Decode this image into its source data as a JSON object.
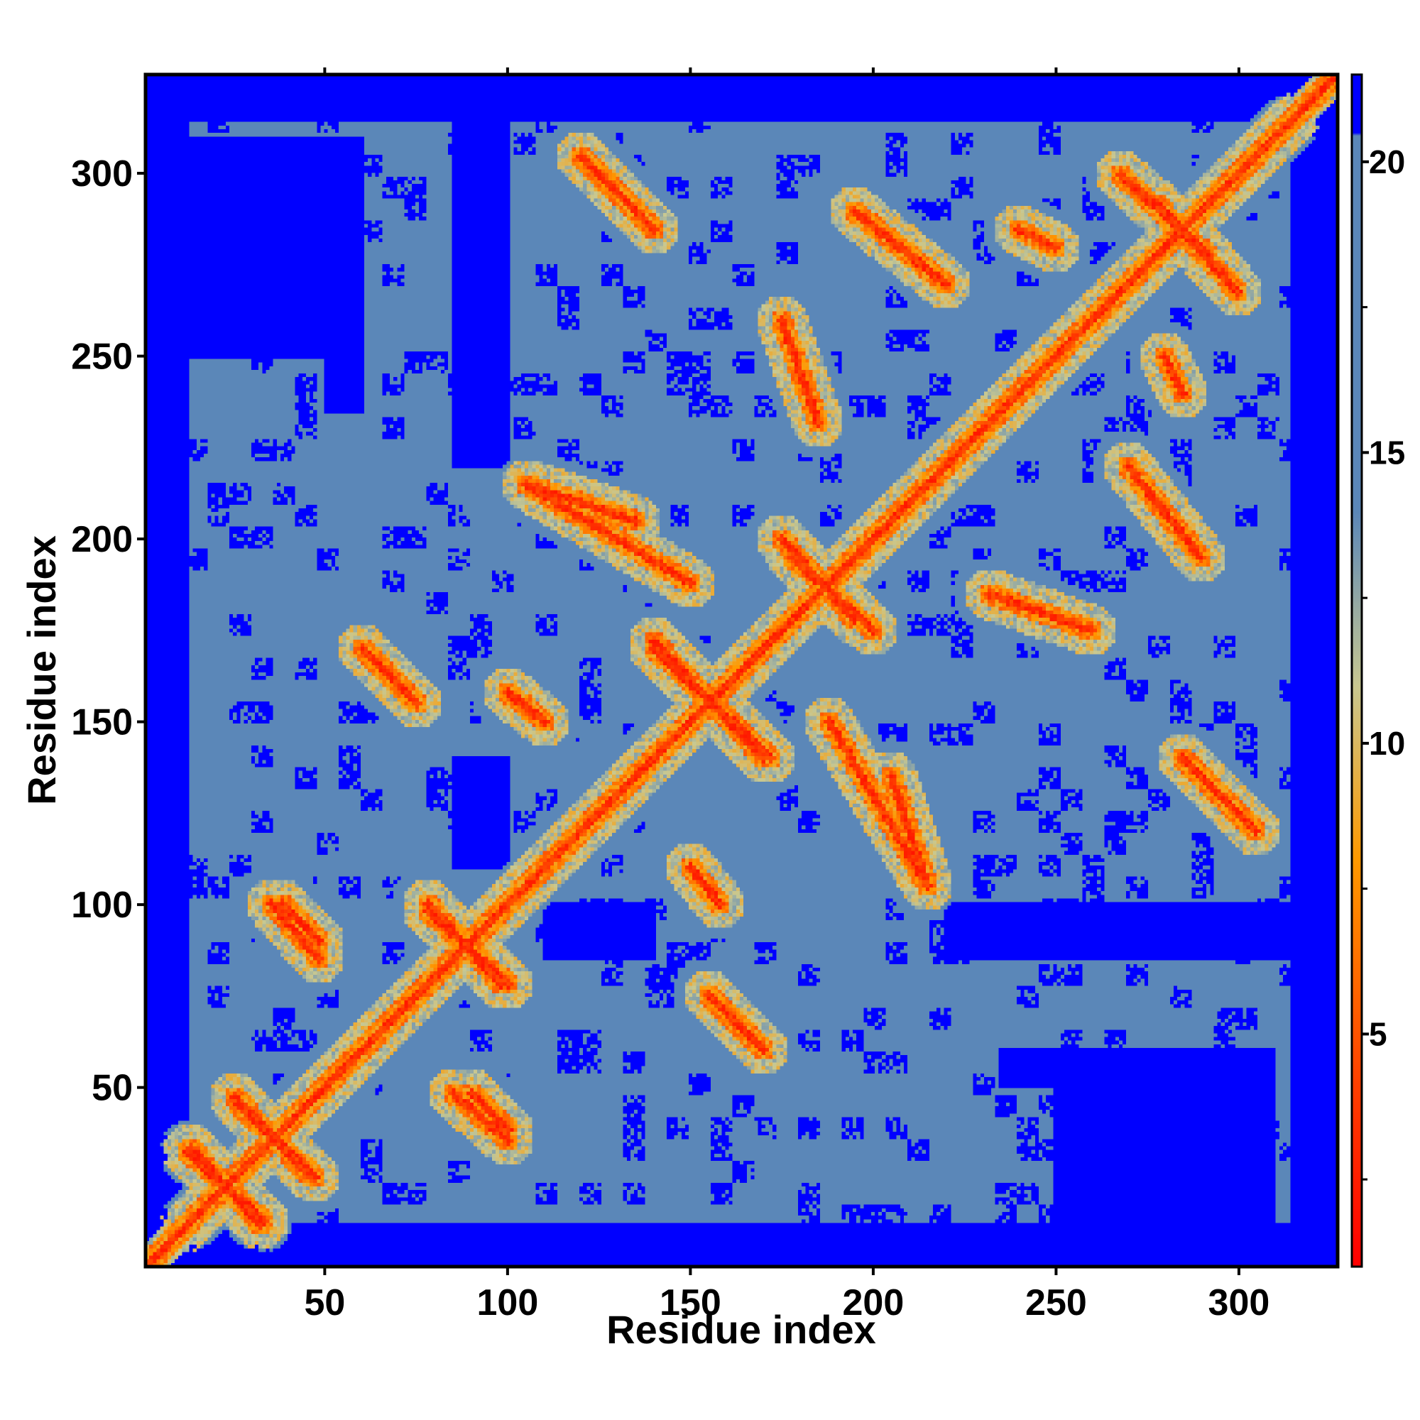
{
  "chart_data": {
    "type": "heatmap",
    "title": "",
    "xlabel": "Residue index",
    "ylabel": "Residue index",
    "n_residues": 325,
    "xlim": [
      1,
      327
    ],
    "ylim": [
      1,
      327
    ],
    "x_ticks": [
      50,
      100,
      150,
      200,
      250,
      300
    ],
    "y_ticks": [
      50,
      100,
      150,
      200,
      250,
      300
    ],
    "x_tick_labels": [
      "50",
      "100",
      "150",
      "200",
      "250",
      "300"
    ],
    "y_tick_labels": [
      "50",
      "100",
      "150",
      "200",
      "250",
      "300"
    ],
    "colorbar": {
      "range": [
        1,
        21.5
      ],
      "ticks": [
        5,
        10,
        15,
        20
      ],
      "tick_labels": [
        "5",
        "10",
        "15",
        "20"
      ],
      "meaning": "distance",
      "colors": {
        "near": "#ff0000",
        "mid_orange": "#ff9900",
        "transition": "#c8c891",
        "far": "#5b87b8",
        "cutoff": "#0000ff"
      }
    },
    "structure": {
      "diagonal": "contact diagonal from residue 1 to 325",
      "antiparallel_contacts": [
        {
          "x": [
            13,
            32
          ],
          "y": [
            33,
            12
          ]
        },
        {
          "x": [
            25,
            45
          ],
          "y": [
            47,
            26
          ]
        },
        {
          "x": [
            35,
            48
          ],
          "y": [
            100,
            85
          ]
        },
        {
          "x": [
            78,
            98
          ],
          "y": [
            100,
            78
          ]
        },
        {
          "x": [
            90,
            100
          ],
          "y": [
            48,
            38
          ]
        },
        {
          "x": [
            140,
            170
          ],
          "y": [
            172,
            140
          ]
        },
        {
          "x": [
            175,
            195
          ],
          "y": [
            200,
            178
          ]
        },
        {
          "x": [
            268,
            292
          ],
          "y": [
            300,
            278
          ]
        }
      ],
      "parallel_contacts": [
        {
          "x": [
            105,
            135
          ],
          "y": [
            215,
            205
          ]
        },
        {
          "x": [
            150,
            158
          ],
          "y": [
            110,
            100
          ]
        },
        {
          "x": [
            188,
            215
          ],
          "y": [
            150,
            105
          ]
        },
        {
          "x": [
            195,
            220
          ],
          "y": [
            290,
            270
          ]
        },
        {
          "x": [
            232,
            260
          ],
          "y": [
            185,
            175
          ]
        },
        {
          "x": [
            285,
            305
          ],
          "y": [
            140,
            120
          ]
        },
        {
          "x": [
            60,
            75
          ],
          "y": [
            170,
            155
          ]
        },
        {
          "x": [
            240,
            250
          ],
          "y": [
            285,
            280
          ]
        }
      ],
      "far_regions": [
        {
          "x": [
            0,
            12
          ],
          "y": [
            0,
            327
          ]
        },
        {
          "x": [
            0,
            327
          ],
          "y": [
            0,
            8
          ]
        },
        {
          "x": [
            0,
            327
          ],
          "y": [
            318,
            327
          ]
        },
        {
          "x": [
            315,
            327
          ],
          "y": [
            0,
            327
          ]
        },
        {
          "x": [
            50,
            60
          ],
          "y": [
            235,
            305
          ]
        },
        {
          "x": [
            85,
            98
          ],
          "y": [
            230,
            290
          ]
        },
        {
          "x": [
            250,
            310
          ],
          "y": [
            10,
            60
          ]
        },
        {
          "x": [
            220,
            320
          ],
          "y": [
            85,
            100
          ]
        },
        {
          "x": [
            110,
            140
          ],
          "y": [
            85,
            100
          ]
        }
      ]
    }
  }
}
